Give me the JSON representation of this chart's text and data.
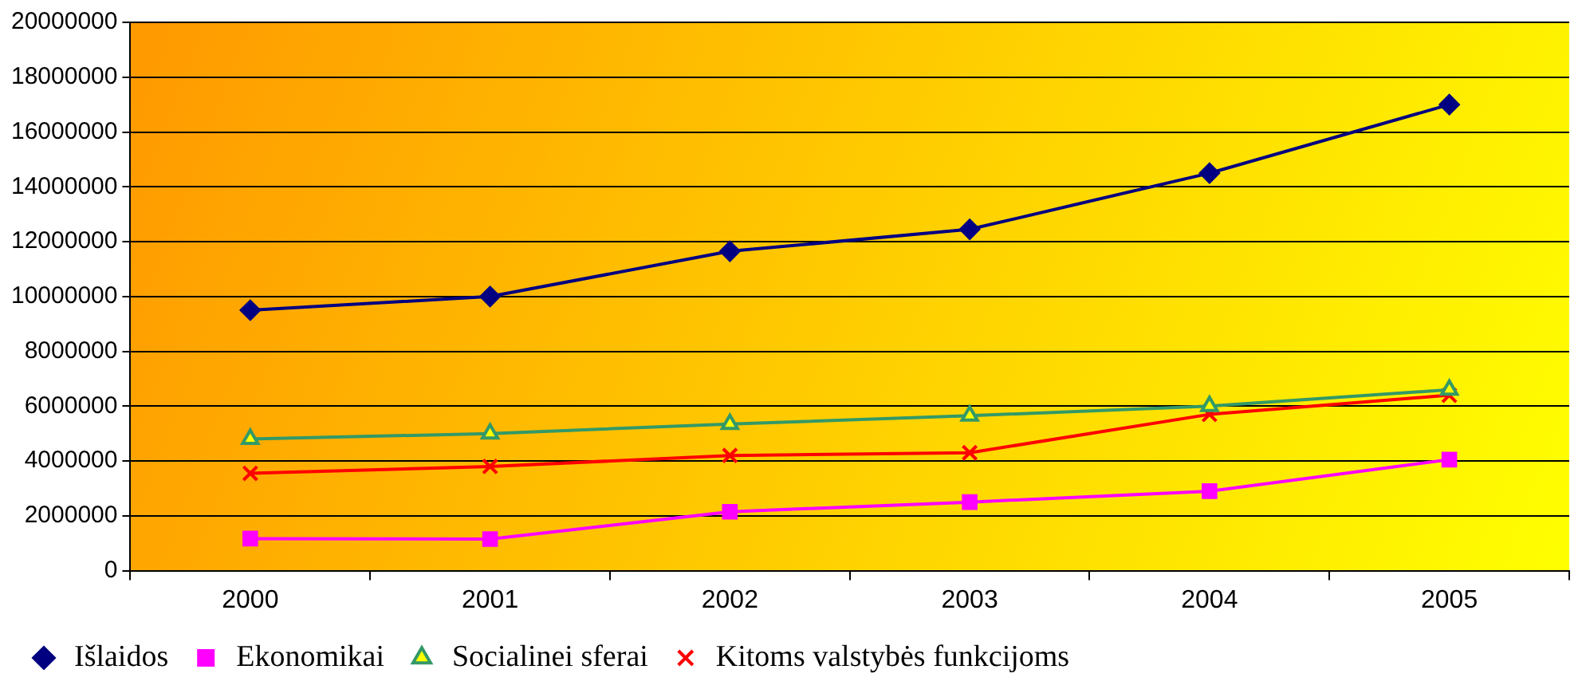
{
  "chart_data": {
    "type": "line",
    "categories": [
      "2000",
      "2001",
      "2002",
      "2003",
      "2004",
      "2005"
    ],
    "series": [
      {
        "name": "Išlaidos",
        "color": "#000080",
        "marker": "diamond",
        "values": [
          9500000,
          10000000,
          11650000,
          12450000,
          14500000,
          17000000
        ]
      },
      {
        "name": "Ekonomikai",
        "color": "#ff00ff",
        "marker": "square",
        "values": [
          1170000,
          1150000,
          2150000,
          2500000,
          2900000,
          4050000
        ]
      },
      {
        "name": "Socialinei sferai",
        "color": "#339966",
        "marker": "triangle",
        "values": [
          4800000,
          5000000,
          5350000,
          5650000,
          6000000,
          6600000
        ]
      },
      {
        "name": "Kitoms valstybės funkcijoms",
        "color": "#ff0000",
        "marker": "cross",
        "values": [
          3550000,
          3800000,
          4200000,
          4300000,
          5700000,
          6400000
        ]
      }
    ],
    "ylim": [
      0,
      20000000
    ],
    "yticks": [
      0,
      2000000,
      4000000,
      6000000,
      8000000,
      10000000,
      12000000,
      14000000,
      16000000,
      18000000,
      20000000
    ],
    "grid": "y",
    "legend": "bottom",
    "line_style": "solid"
  }
}
